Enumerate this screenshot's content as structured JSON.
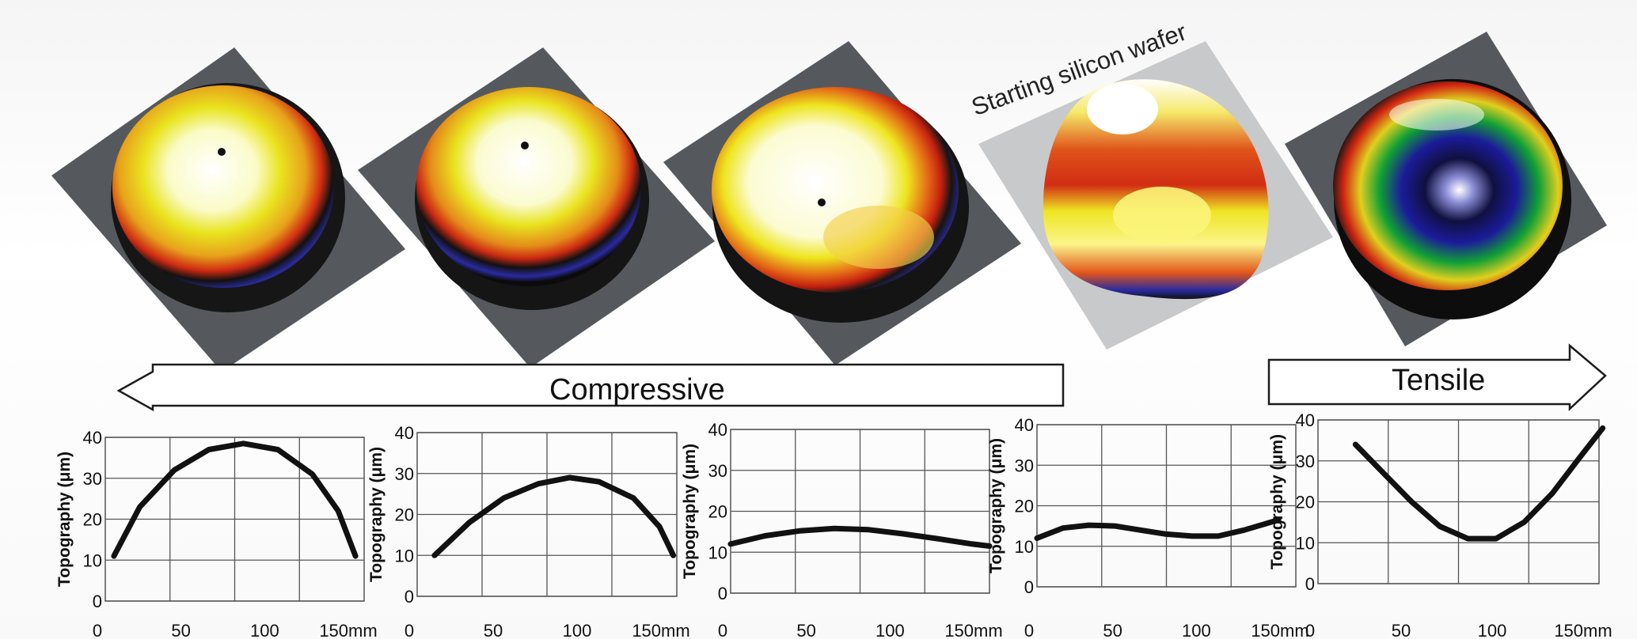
{
  "annotation": {
    "wafer_caption": "Starting silicon wafer"
  },
  "stress_arrows": {
    "compressive": "Compressive",
    "tensile": "Tensile"
  },
  "colors": {
    "plate": "#55595e",
    "plate_light": "#c8c9cb",
    "curve": "#111111",
    "grid": "#555555"
  },
  "chart_data": [
    {
      "type": "line",
      "ylabel": "Topography (μm)",
      "y_ticks": [
        "0",
        "10",
        "20",
        "30",
        "40"
      ],
      "x_ticks": [
        "0",
        "50",
        "100",
        "150mm"
      ],
      "xlim": [
        0,
        150
      ],
      "ylim": [
        0,
        40
      ],
      "grid": true,
      "series": [
        {
          "x": [
            5,
            20,
            40,
            60,
            80,
            100,
            120,
            135,
            145
          ],
          "y": [
            11,
            23,
            32,
            37,
            38.5,
            37,
            31,
            22,
            11
          ]
        }
      ]
    },
    {
      "type": "line",
      "ylabel": "Topography (μm)",
      "y_ticks": [
        "0",
        "10",
        "20",
        "30",
        "40"
      ],
      "x_ticks": [
        "0",
        "50",
        "100",
        "150mm"
      ],
      "xlim": [
        0,
        150
      ],
      "ylim": [
        0,
        40
      ],
      "grid": true,
      "series": [
        {
          "x": [
            10,
            30,
            50,
            70,
            88,
            105,
            125,
            140,
            148
          ],
          "y": [
            10,
            18,
            24,
            27.5,
            29,
            28,
            24,
            17,
            10
          ]
        }
      ]
    },
    {
      "type": "line",
      "ylabel": "Topography (μm)",
      "y_ticks": [
        "0",
        "10",
        "20",
        "30",
        "40"
      ],
      "x_ticks": [
        "0",
        "50",
        "100",
        "150mm"
      ],
      "xlim": [
        0,
        150
      ],
      "ylim": [
        0,
        40
      ],
      "grid": true,
      "series": [
        {
          "x": [
            0,
            20,
            40,
            60,
            80,
            100,
            120,
            140,
            150
          ],
          "y": [
            12,
            14,
            15.2,
            15.8,
            15.5,
            14.5,
            13.3,
            12,
            11.5
          ]
        }
      ]
    },
    {
      "type": "line",
      "ylabel": "Topography (μm)",
      "y_ticks": [
        "0",
        "10",
        "20",
        "30",
        "40"
      ],
      "x_ticks": [
        "0",
        "50",
        "100",
        "150mm"
      ],
      "xlim": [
        0,
        150
      ],
      "ylim": [
        0,
        40
      ],
      "grid": true,
      "series": [
        {
          "x": [
            0,
            15,
            30,
            45,
            60,
            75,
            90,
            105,
            120,
            140
          ],
          "y": [
            12,
            14.5,
            15.2,
            15,
            14,
            13,
            12.5,
            12.5,
            14,
            16.5
          ]
        }
      ]
    },
    {
      "type": "line",
      "ylabel": "Topography (μm)",
      "y_ticks": [
        "0",
        "10",
        "20",
        "30",
        "40"
      ],
      "x_ticks": [
        "0",
        "50",
        "100",
        "150mm"
      ],
      "xlim": [
        0,
        150
      ],
      "ylim": [
        0,
        40
      ],
      "grid": true,
      "series": [
        {
          "x": [
            20,
            35,
            50,
            65,
            80,
            95,
            110,
            125,
            140,
            152
          ],
          "y": [
            34,
            27,
            20,
            14,
            11,
            11,
            15,
            22,
            31,
            38
          ]
        }
      ]
    }
  ]
}
